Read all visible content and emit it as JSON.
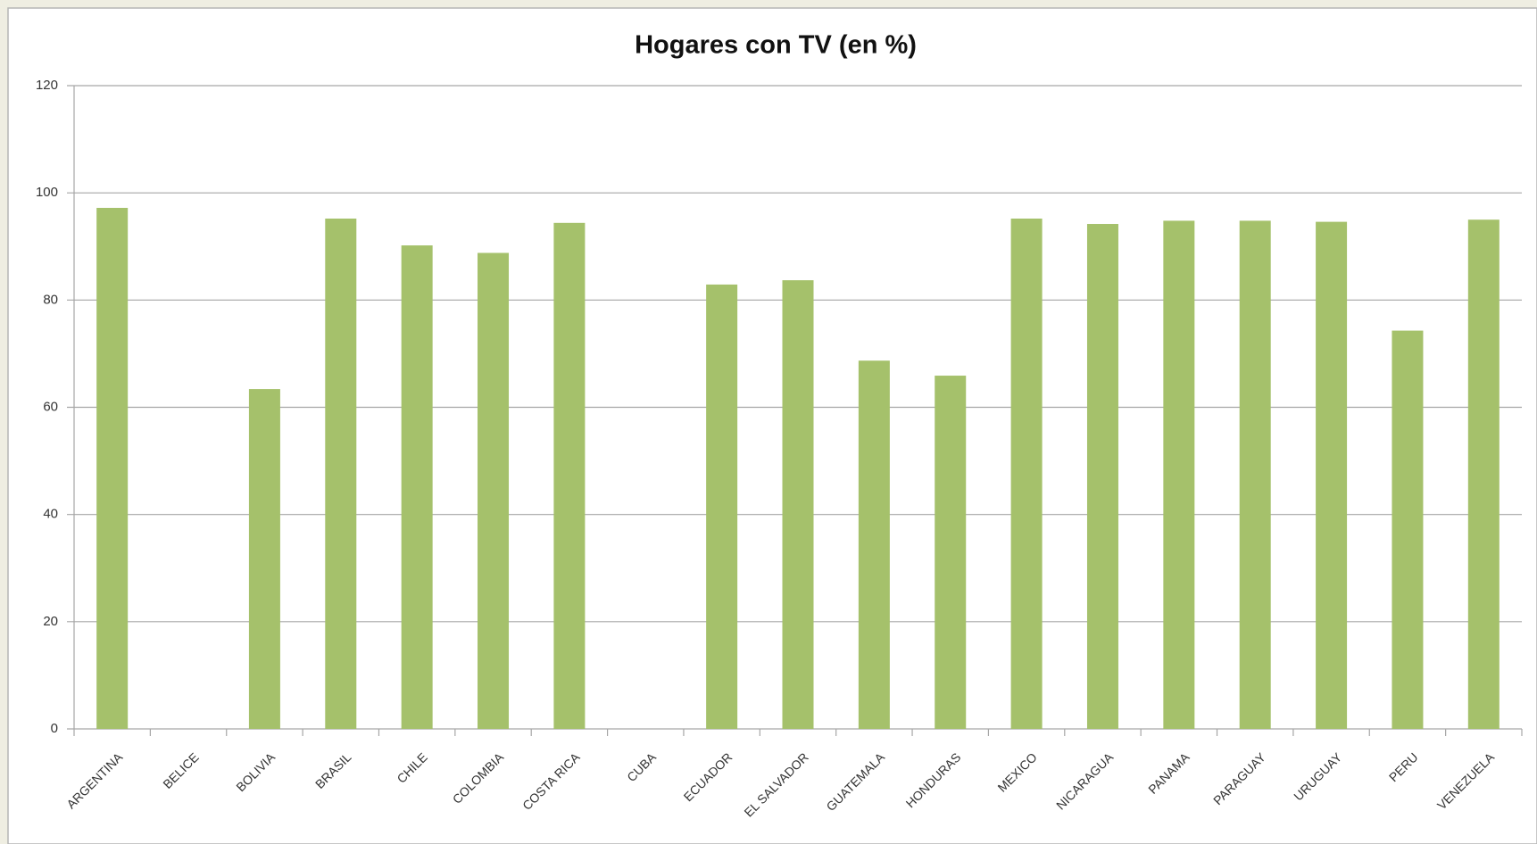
{
  "chart_data": {
    "type": "bar",
    "title": "Hogares con TV (en %)",
    "categories": [
      "ARGENTINA",
      "BELICE",
      "BOLIVIA",
      "BRASIL",
      "CHILE",
      "COLOMBIA",
      "COSTA RICA",
      "CUBA",
      "ECUADOR",
      "EL SALVADOR",
      "GUATEMALA",
      "HONDURAS",
      "MEXICO",
      "NICARAGUA",
      "PANAMA",
      "PARAGUAY",
      "URUGUAY",
      "PERU",
      "VENEZUELA"
    ],
    "values": [
      97.2,
      null,
      63.4,
      95.2,
      90.2,
      88.8,
      94.4,
      null,
      82.9,
      83.7,
      68.7,
      65.9,
      95.2,
      94.2,
      94.8,
      94.8,
      94.6,
      74.3,
      95
    ],
    "color": "#a5c16b",
    "ylim": [
      0,
      120
    ],
    "yticks": [
      0,
      20,
      40,
      60,
      80,
      100,
      120
    ],
    "grid": true
  }
}
